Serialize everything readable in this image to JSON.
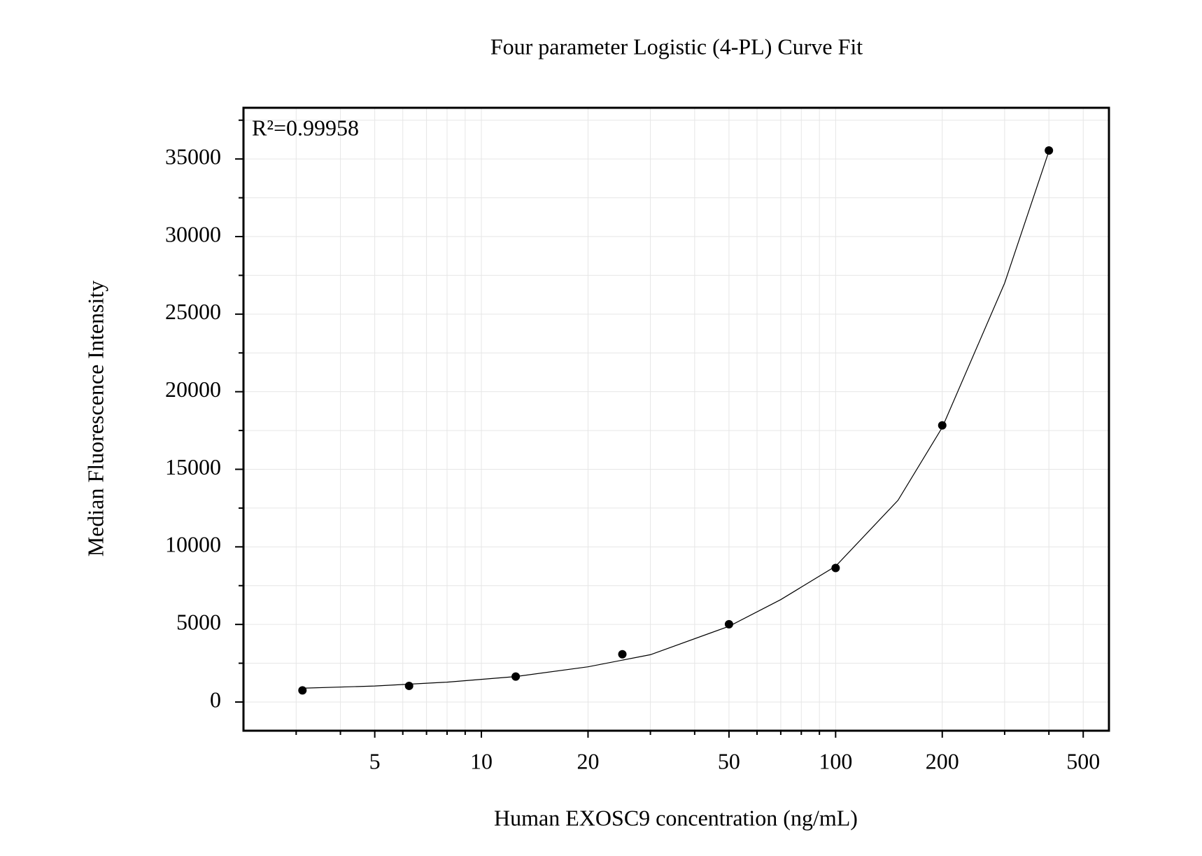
{
  "chart_data": {
    "type": "scatter",
    "title": "Four parameter Logistic (4-PL) Curve Fit",
    "x_label": "Human EXOSC9 concentration (ng/mL)",
    "y_label": "Median Fluorescence Intensity",
    "annotation": "R²=0.99958",
    "xscale": "log",
    "xlim": [
      2.13,
      591
    ],
    "ylim": [
      -1850,
      38300
    ],
    "xticks": [
      5,
      10,
      20,
      50,
      100,
      200,
      500
    ],
    "xminor": [
      3,
      4,
      6,
      7,
      8,
      9,
      30,
      40,
      60,
      70,
      80,
      90,
      300,
      400
    ],
    "yticks": [
      0,
      5000,
      10000,
      15000,
      20000,
      25000,
      30000,
      35000
    ],
    "yminor": [
      2500,
      7500,
      12500,
      17500,
      22500,
      27500,
      32500,
      37500
    ],
    "grid": true,
    "series": [
      {
        "mode": "markers",
        "color": "#000000",
        "x": [
          3.125,
          6.25,
          12.5,
          25,
          50,
          100,
          200,
          400
        ],
        "values": [
          750,
          1040,
          1640,
          3080,
          5015,
          8640,
          17830,
          35550
        ]
      },
      {
        "mode": "line",
        "color": "#000000",
        "x": [
          3.125,
          5,
          8,
          12.5,
          20,
          30,
          50,
          70,
          100,
          150,
          200,
          300,
          400
        ],
        "values": [
          890,
          1030,
          1280,
          1640,
          2270,
          3050,
          4880,
          6600,
          8750,
          13000,
          17700,
          27000,
          35500
        ]
      }
    ]
  }
}
